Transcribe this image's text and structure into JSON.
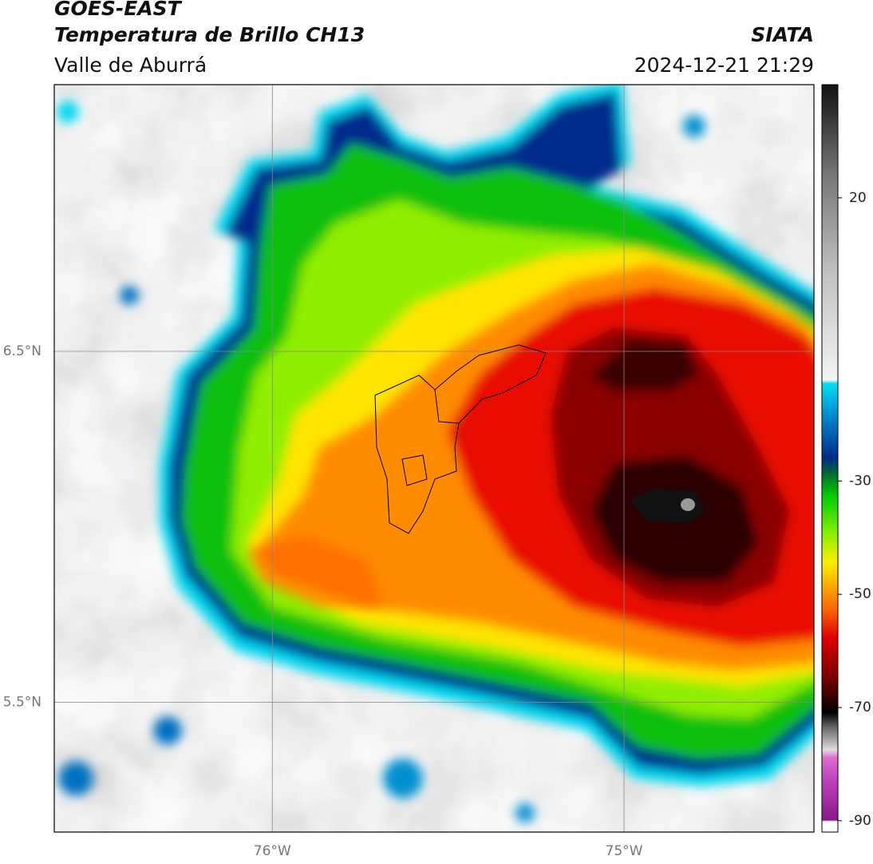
{
  "header": {
    "title": "GOES-EAST",
    "subtitle": "Temperatura de Brillo CH13",
    "region": "Valle de Aburrá",
    "source": "SIATA",
    "datetime": "2024-12-21 21:29"
  },
  "map": {
    "xlim": [
      -76.62,
      -74.46
    ],
    "ylim": [
      5.13,
      7.26
    ],
    "xticks": [
      {
        "value": -76,
        "label": "76°W"
      },
      {
        "value": -75,
        "label": "75°W"
      }
    ],
    "yticks": [
      {
        "value": 6.5,
        "label": "6.5°N"
      },
      {
        "value": 5.5,
        "label": "5.5°N"
      }
    ]
  },
  "colorbar": {
    "lim": [
      -92,
      40
    ],
    "ticks": [
      20,
      -30,
      -50,
      -70,
      -90
    ]
  }
}
